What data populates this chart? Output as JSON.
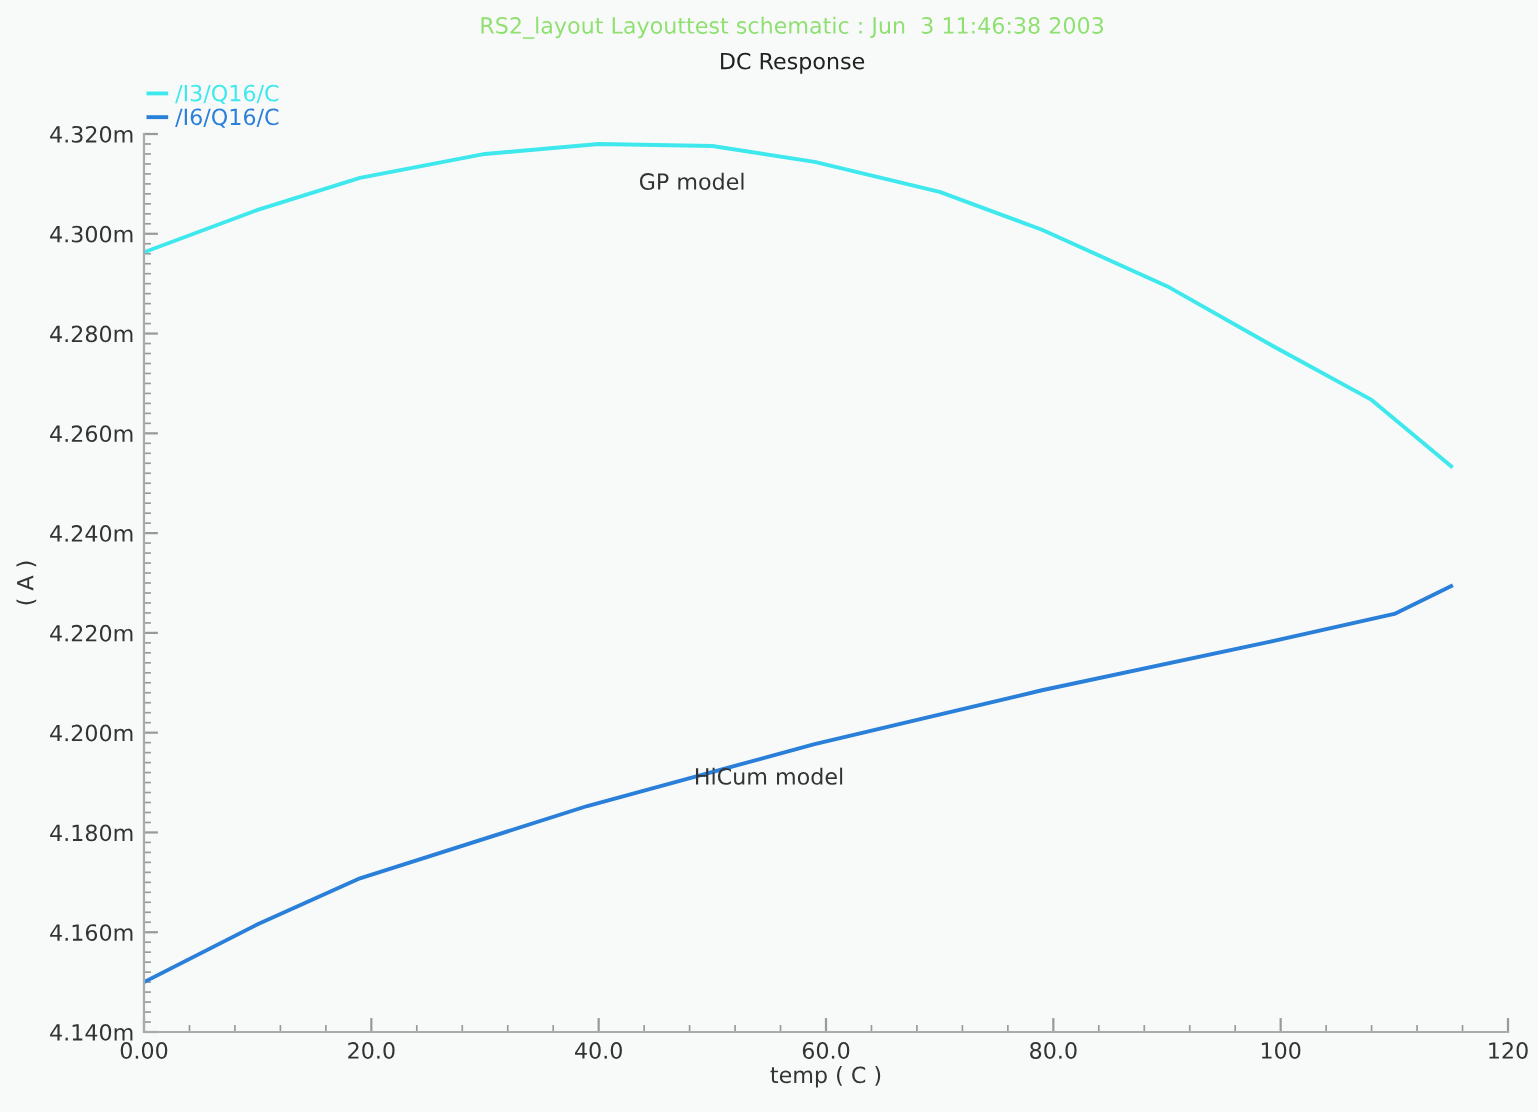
{
  "chart_data": {
    "type": "line",
    "title": "RS2_layout Layouttest schematic : Jun  3 11:46:38 2003",
    "subtitle": "DC Response",
    "xlabel": "temp ( C )",
    "ylabel": "( A )",
    "series": [
      {
        "name": "/I3/Q16/C",
        "color": "#3ee8ec",
        "x": [
          0,
          10,
          19,
          30,
          40,
          50,
          59,
          70,
          79,
          90,
          99,
          108,
          115
        ],
        "values": [
          4.2963,
          4.3048,
          4.3112,
          4.316,
          4.318,
          4.3176,
          4.3144,
          4.3084,
          4.3008,
          4.2895,
          4.2779,
          4.2667,
          4.2534
        ]
      },
      {
        "name": "/I6/Q16/C",
        "color": "#2a7fd8",
        "x": [
          0,
          10,
          19,
          39,
          59,
          79,
          99,
          110,
          115
        ],
        "values": [
          4.15,
          4.1616,
          4.1708,
          4.1853,
          4.1977,
          4.2085,
          4.2182,
          4.2238,
          4.2294
        ]
      }
    ],
    "annotations": [
      "GP model",
      "HiCum model"
    ],
    "xlim": [
      0,
      120
    ],
    "xticks": [
      {
        "value": 0,
        "label": "0.00"
      },
      {
        "value": 20,
        "label": "20.0"
      },
      {
        "value": 40,
        "label": "40.0"
      },
      {
        "value": 60,
        "label": "60.0"
      },
      {
        "value": 80,
        "label": "80.0"
      },
      100,
      120
    ],
    "ylim": [
      4.14,
      4.32
    ],
    "yticks": [
      {
        "value": 4.14,
        "label": "4.140m"
      },
      {
        "value": 4.16,
        "label": "4.160m"
      },
      {
        "value": 4.18,
        "label": "4.180m"
      },
      {
        "value": 4.2,
        "label": "4.200m"
      },
      {
        "value": 4.22,
        "label": "4.220m"
      },
      {
        "value": 4.24,
        "label": "4.240m"
      },
      {
        "value": 4.26,
        "label": "4.260m"
      },
      {
        "value": 4.28,
        "label": "4.280m"
      },
      {
        "value": 4.3,
        "label": "4.300m"
      },
      {
        "value": 4.32,
        "label": "4.320m"
      }
    ],
    "grid": false,
    "legend": "top left",
    "line_style": "solid",
    "marker": "none"
  }
}
